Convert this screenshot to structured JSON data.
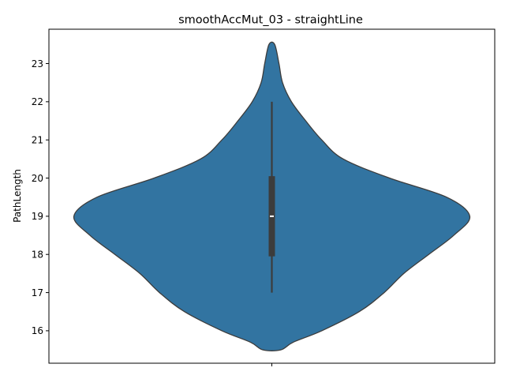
{
  "chart_data": {
    "type": "violin",
    "title": "smoothAccMut_03 - straightLine",
    "xlabel": "",
    "ylabel": "PathLength",
    "ylim": [
      15.15,
      23.9
    ],
    "yticks": [
      16,
      17,
      18,
      19,
      20,
      21,
      22,
      23
    ],
    "grid": false,
    "legend": "none",
    "color": "#3274a1",
    "edge_color": "#3c3c3c",
    "box_color": "#3c3c3c",
    "median_color": "#ffffff",
    "violin": {
      "min": 15.5,
      "max": 23.5,
      "density_profile": [
        {
          "y": 15.5,
          "half_width": 0.025
        },
        {
          "y": 15.7,
          "half_width": 0.06
        },
        {
          "y": 16.0,
          "half_width": 0.14
        },
        {
          "y": 16.5,
          "half_width": 0.245
        },
        {
          "y": 17.0,
          "half_width": 0.315
        },
        {
          "y": 17.5,
          "half_width": 0.37
        },
        {
          "y": 18.0,
          "half_width": 0.44
        },
        {
          "y": 18.5,
          "half_width": 0.51
        },
        {
          "y": 19.0,
          "half_width": 0.555
        },
        {
          "y": 19.5,
          "half_width": 0.49
        },
        {
          "y": 20.0,
          "half_width": 0.33
        },
        {
          "y": 20.5,
          "half_width": 0.2
        },
        {
          "y": 21.0,
          "half_width": 0.14
        },
        {
          "y": 21.5,
          "half_width": 0.095
        },
        {
          "y": 22.0,
          "half_width": 0.055
        },
        {
          "y": 22.5,
          "half_width": 0.03
        },
        {
          "y": 23.0,
          "half_width": 0.02
        },
        {
          "y": 23.5,
          "half_width": 0.008
        }
      ]
    },
    "box": {
      "whisker_low": 17,
      "q1": 17.95,
      "median": 19,
      "q3": 20.05,
      "whisker_high": 22
    }
  }
}
